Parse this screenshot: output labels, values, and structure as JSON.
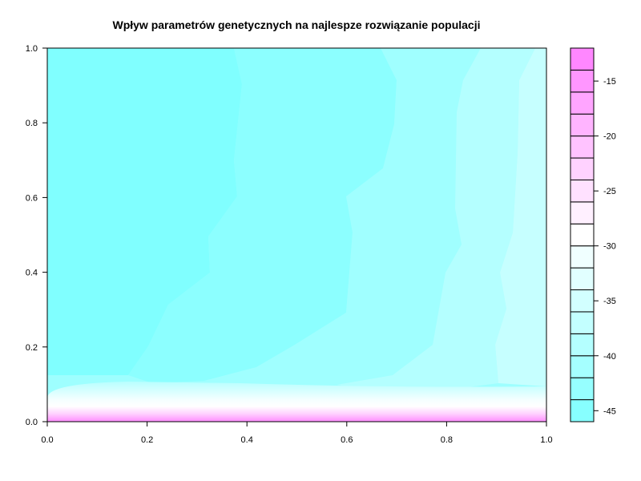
{
  "chart_data": {
    "type": "heatmap",
    "subtype": "filled-contour",
    "title": "Wpływ parametrów genetycznych na najlespze rozwiązanie populacji",
    "xlabel": "",
    "ylabel": "",
    "xlim": [
      0,
      1
    ],
    "ylim": [
      0,
      1
    ],
    "x_ticks": [
      "0.0",
      "0.2",
      "0.4",
      "0.6",
      "0.8",
      "1.0"
    ],
    "y_ticks": [
      "0.0",
      "0.2",
      "0.4",
      "0.6",
      "0.8",
      "1.0"
    ],
    "grid": false,
    "legend": {
      "type": "colorbar",
      "placement": "right",
      "range": [
        -46,
        -12
      ],
      "levels": [
        -46,
        -44,
        -42,
        -40,
        -38,
        -36,
        -34,
        -32,
        -30,
        -28,
        -26,
        -24,
        -22,
        -20,
        -18,
        -16,
        -14,
        -12
      ],
      "tick_values": [
        -45,
        -40,
        -35,
        -30,
        -25,
        -20,
        -15
      ],
      "tick_labels": [
        "-45",
        "-40",
        "-35",
        "-30",
        "-25",
        "-20",
        "-15"
      ],
      "palette": "cm.colors",
      "color_low": "#80FFFF",
      "color_mid": "#FFFFFF",
      "color_high": "#FF80FF"
    },
    "regions": [
      {
        "value_range": [
          -46,
          -44
        ],
        "x_range": [
          0.0,
          0.39
        ],
        "y_range": [
          0.08,
          1.0
        ]
      },
      {
        "value_range": [
          -44,
          -42
        ],
        "x_range": [
          0.2,
          0.7
        ],
        "y_range": [
          0.08,
          1.0
        ]
      },
      {
        "value_range": [
          -42,
          -40
        ],
        "x_range": [
          0.38,
          0.9
        ],
        "y_range": [
          0.08,
          1.0
        ]
      },
      {
        "value_range": [
          -40,
          -38
        ],
        "x_range": [
          0.7,
          0.97
        ],
        "y_range": [
          0.08,
          1.0
        ]
      },
      {
        "value_range": [
          -38,
          -36
        ],
        "x_range": [
          0.9,
          1.0
        ],
        "y_range": [
          0.08,
          1.0
        ]
      },
      {
        "value_range": [
          -36,
          -12
        ],
        "x_range": [
          0.0,
          1.0
        ],
        "y_range": [
          0.0,
          0.08
        ]
      }
    ]
  }
}
